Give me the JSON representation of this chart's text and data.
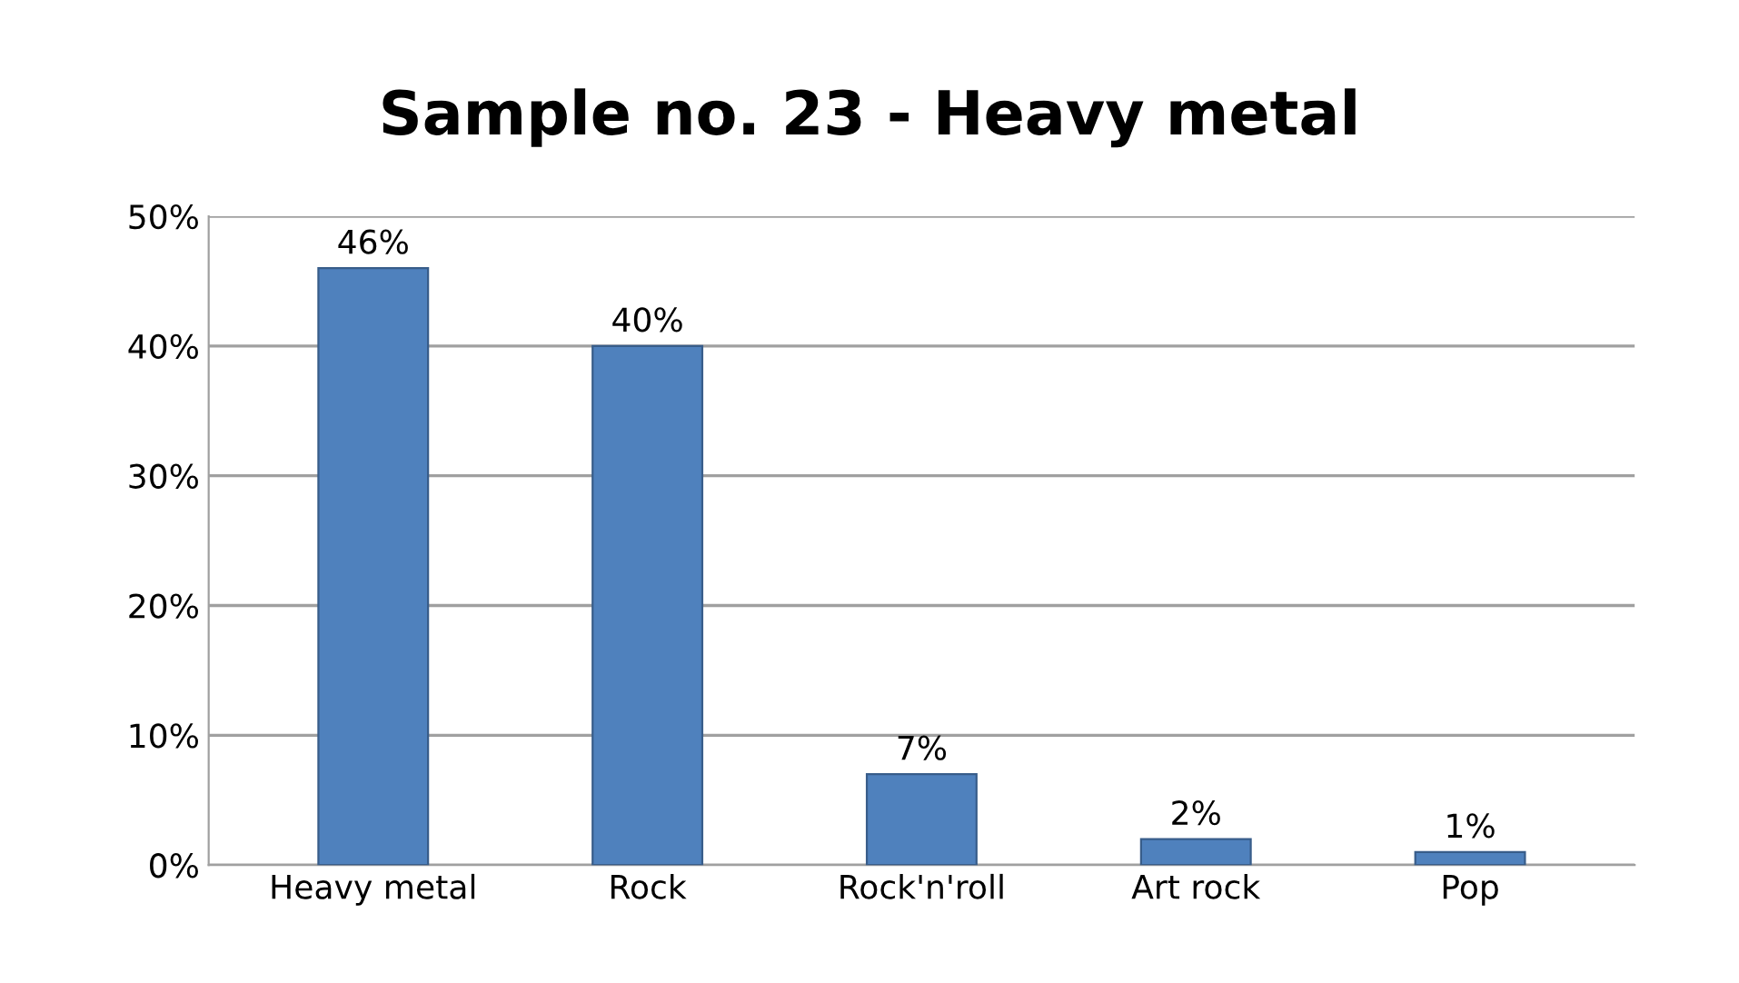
{
  "chart_data": {
    "type": "bar",
    "title": "Sample no. 23 - Heavy metal",
    "categories": [
      "Heavy metal",
      "Rock",
      "Rock'n'roll",
      "Art rock",
      "Pop"
    ],
    "values": [
      46,
      40,
      7,
      2,
      1
    ],
    "value_labels": [
      "46%",
      "40%",
      "7%",
      "2%",
      "1%"
    ],
    "color": "#4f81bd",
    "ylim": [
      0,
      50
    ],
    "yticks": [
      {
        "value": 0,
        "label": "0%"
      },
      {
        "value": 10,
        "label": "10%"
      },
      {
        "value": 20,
        "label": "20%"
      },
      {
        "value": 30,
        "label": "30%"
      },
      {
        "value": 40,
        "label": "40%"
      },
      {
        "value": 50,
        "label": "50%"
      }
    ],
    "grid": "y"
  }
}
